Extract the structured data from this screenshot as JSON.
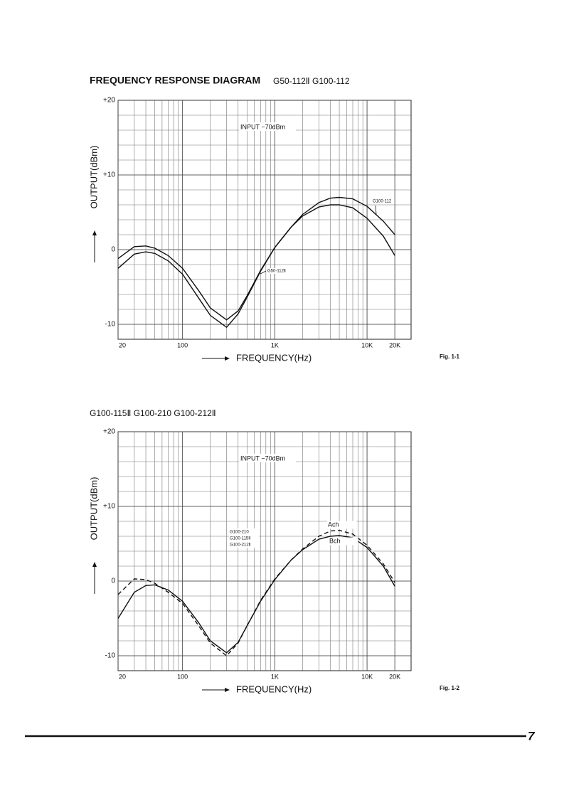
{
  "chart_data": [
    {
      "type": "line",
      "title": "FREQUENCY RESPONSE DIAGRAM",
      "subtitle": "G50-112Ⅱ  G100-112",
      "annotation": "INPUT −70dBm",
      "y_label": "OUTPUT(dBm)",
      "x_label": "FREQUENCY(Hz)",
      "caption": "Fig. 1-1",
      "log_x": true,
      "grid": true,
      "xlim": [
        20,
        30000
      ],
      "ylim": [
        -12,
        20
      ],
      "xticks": [
        20,
        100,
        {
          "value": 1000,
          "label": "1K"
        },
        {
          "value": 10000,
          "label": "10K"
        },
        {
          "value": 20000,
          "label": "20K"
        }
      ],
      "yticks": [
        {
          "value": 20,
          "label": "+20"
        },
        {
          "value": 10,
          "label": "+10"
        },
        0,
        -10
      ],
      "x": [
        20,
        30,
        40,
        50,
        70,
        100,
        150,
        200,
        300,
        400,
        500,
        700,
        1000,
        1500,
        2000,
        3000,
        4000,
        5000,
        7000,
        10000,
        15000,
        20000
      ],
      "series": [
        {
          "name": "G100-112",
          "color": "#111",
          "dash": false,
          "values": [
            -1.2,
            0.4,
            0.5,
            0.2,
            -0.8,
            -2.5,
            -5.5,
            -7.8,
            -9.4,
            -8.2,
            -6.2,
            -2.8,
            0.3,
            3,
            4.7,
            6.3,
            6.9,
            7,
            6.8,
            5.8,
            3.8,
            2
          ]
        },
        {
          "name": "G50-112Ⅱ",
          "color": "#111",
          "dash": false,
          "values": [
            -2.5,
            -0.6,
            -0.3,
            -0.5,
            -1.5,
            -3.3,
            -6.5,
            -8.8,
            -10.4,
            -8.6,
            -6.4,
            -2.9,
            0.3,
            3,
            4.5,
            5.7,
            6,
            6,
            5.6,
            4.2,
            1.8,
            -0.8
          ]
        }
      ]
    },
    {
      "type": "line",
      "title": "G100-115Ⅱ  G100-210  G100-212Ⅱ",
      "annotation": "INPUT −70dBm",
      "models": [
        "G100-210",
        "G100-115Ⅱ",
        "G100-212Ⅱ"
      ],
      "y_label": "OUTPUT(dBm)",
      "x_label": "FREQUENCY(Hz)",
      "caption": "Fig. 1-2",
      "log_x": true,
      "grid": true,
      "xlim": [
        20,
        30000
      ],
      "ylim": [
        -12,
        20
      ],
      "xticks": [
        20,
        100,
        {
          "value": 1000,
          "label": "1K"
        },
        {
          "value": 10000,
          "label": "10K"
        },
        {
          "value": 20000,
          "label": "20K"
        }
      ],
      "yticks": [
        {
          "value": 20,
          "label": "+20"
        },
        {
          "value": 10,
          "label": "+10"
        },
        0,
        -10
      ],
      "x": [
        20,
        30,
        40,
        50,
        70,
        100,
        150,
        200,
        300,
        400,
        500,
        700,
        1000,
        1500,
        2000,
        3000,
        4000,
        5000,
        7000,
        10000,
        15000,
        20000
      ],
      "series": [
        {
          "name": "Ach",
          "color": "#111",
          "dash": true,
          "values": [
            -1.8,
            0.3,
            0.2,
            -0.3,
            -1.5,
            -3,
            -6,
            -8.3,
            -10,
            -8.3,
            -6,
            -2.6,
            0.3,
            2.8,
            4.3,
            6,
            6.7,
            6.8,
            6.3,
            4.8,
            2.3,
            -0.2
          ]
        },
        {
          "name": "Bch",
          "color": "#111",
          "dash": false,
          "values": [
            -5,
            -1.5,
            -0.6,
            -0.5,
            -1.2,
            -2.7,
            -5.6,
            -8,
            -9.6,
            -8.2,
            -6,
            -2.7,
            0.2,
            2.8,
            4.2,
            5.6,
            6,
            6.1,
            5.8,
            4.5,
            2,
            -0.7
          ]
        }
      ]
    }
  ],
  "page_number": "7"
}
